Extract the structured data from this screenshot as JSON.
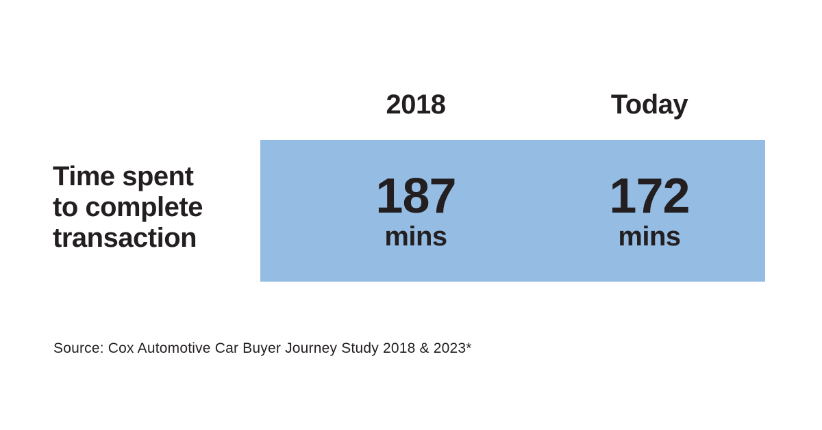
{
  "colors": {
    "background": "#ffffff",
    "highlight_band": "#95bde4",
    "text": "#231f20"
  },
  "table": {
    "row_label_lines": [
      "Time spent",
      "to complete",
      "transaction"
    ],
    "columns": [
      {
        "header": "2018",
        "value": "187",
        "unit": "mins"
      },
      {
        "header": "Today",
        "value": "172",
        "unit": "mins"
      }
    ]
  },
  "source": {
    "text": "Source: Cox Automotive Car Buyer Journey Study 2018 & 2023*"
  },
  "chart_data": {
    "type": "table",
    "title": "",
    "categories": [
      "2018",
      "Today"
    ],
    "rows": [
      {
        "label": "Time spent to complete transaction",
        "values": [
          187,
          172
        ],
        "unit": "mins"
      }
    ],
    "series": [
      {
        "name": "Time spent to complete transaction (mins)",
        "values": [
          187,
          172
        ]
      }
    ],
    "annotations": [
      "Source: Cox Automotive Car Buyer Journey Study 2018 & 2023*"
    ],
    "layout": {
      "highlight_band_color": "#95bde4",
      "legend": "none",
      "grid": false
    }
  }
}
